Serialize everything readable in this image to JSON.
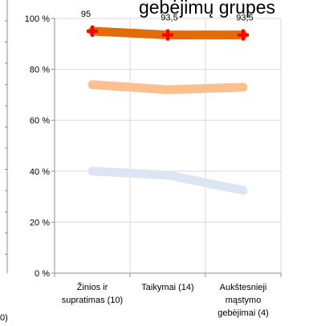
{
  "chart_data": {
    "type": "line",
    "title": "gebėjimų grupes",
    "categories": [
      [
        "Žinios ir",
        "supratimas (10)"
      ],
      [
        "Taikymai (14)"
      ],
      [
        "Aukštesnieji",
        "mąstymo",
        "gebėjimai (4)"
      ]
    ],
    "y_ticks": [
      "0 %",
      "20 %",
      "40 %",
      "60 %",
      "80 %",
      "100 %"
    ],
    "ylim": [
      0,
      100
    ],
    "grid": true,
    "series": [
      {
        "values": [
          95,
          93.5,
          93.5
        ],
        "color": "#E36C0A",
        "marker": "plus-marker",
        "marker_color": "#FF0000",
        "data_labels": [
          "95",
          "93,5",
          "93,5"
        ]
      },
      {
        "values": [
          74,
          72,
          73
        ],
        "color": "#FAC090"
      },
      {
        "values": [
          40,
          38.5,
          32.5
        ],
        "color": "#DCE6F2"
      }
    ],
    "partial_left_label": "0)"
  }
}
